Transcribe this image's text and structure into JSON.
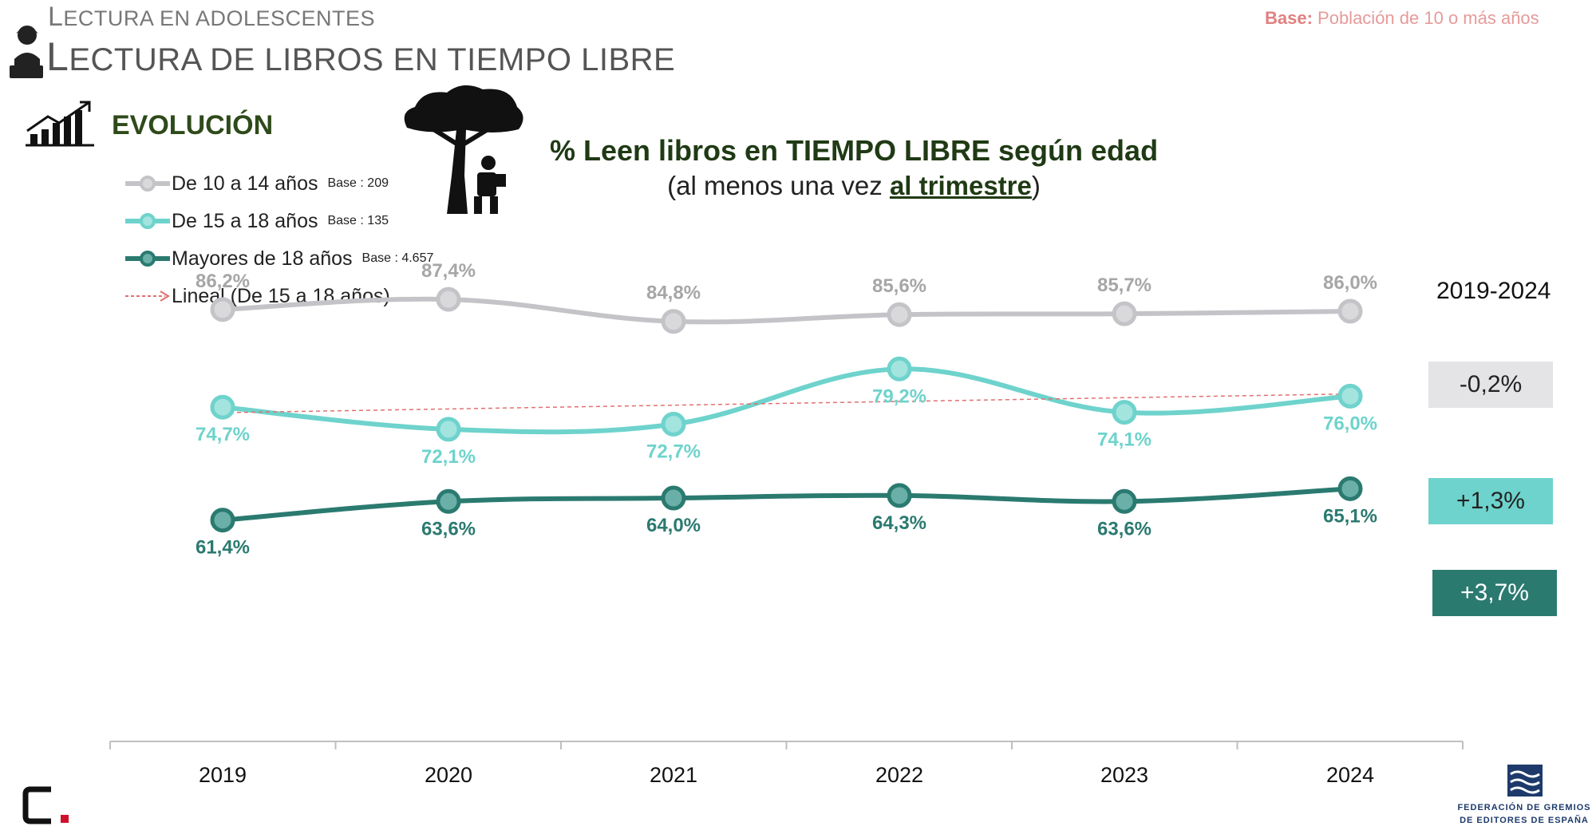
{
  "header": {
    "section_cap": "L",
    "section_rest": "ECTURA EN ADOLESCENTES",
    "title_cap1": "L",
    "title_rest1": "ECTURA DE LIBROS EN ",
    "title_cap2": "T",
    "title_rest2": "IEMPO LIBRE",
    "base_label": "Base:",
    "base_text": " Población de 10 o más años",
    "evolution_label": "EVOLUCIÓN"
  },
  "chart_data": {
    "type": "line",
    "title": "% Leen libros en TIEMPO LIBRE según edad",
    "subtitle_pre": "(al menos una vez ",
    "subtitle_em": "al trimestre",
    "subtitle_post": ")",
    "categories": [
      "2019",
      "2020",
      "2021",
      "2022",
      "2023",
      "2024"
    ],
    "series": [
      {
        "name": "De 10 a 14 años",
        "base": "Base : 209",
        "color": "#c4c4c8",
        "point_fill": "#d9d9dc",
        "values": [
          86.2,
          87.4,
          84.8,
          85.6,
          85.7,
          86.0
        ],
        "labels": [
          "86,2%",
          "87,4%",
          "84,8%",
          "85,6%",
          "85,7%",
          "86,0%"
        ],
        "label_position": "above",
        "label_color": "#a6a6a6"
      },
      {
        "name": "De 15 a 18 años",
        "base": "Base : 135",
        "color": "#6ed3cc",
        "point_fill": "#a3e4df",
        "values": [
          74.7,
          72.1,
          72.7,
          79.2,
          74.1,
          76.0
        ],
        "labels": [
          "74,7%",
          "72,1%",
          "72,7%",
          "79,2%",
          "74,1%",
          "76,0%"
        ],
        "label_position": "below",
        "label_color": "#6ed3cc"
      },
      {
        "name": "Mayores de 18 años",
        "base": "Base : 4.657",
        "color": "#2b7a70",
        "point_fill": "#6ab0a8",
        "values": [
          61.4,
          63.6,
          64.0,
          64.3,
          63.6,
          65.1
        ],
        "labels": [
          "61,4%",
          "63,6%",
          "64,0%",
          "64,3%",
          "63,6%",
          "65,1%"
        ],
        "label_position": "below",
        "label_color": "#2b7a70"
      }
    ],
    "trendline": {
      "name": "Lineal (De 15 a 18 años)",
      "color": "#e07070",
      "start": 74.05,
      "end": 76.25
    },
    "period": "2019-2024",
    "changes": [
      {
        "label": "-0,2%",
        "bg": "#e4e4e6",
        "fg": "#222222"
      },
      {
        "label": "+1,3%",
        "bg": "#6ed3cc",
        "fg": "#222222"
      },
      {
        "label": "+3,7%",
        "bg": "#2b7a70",
        "fg": "#ffffff"
      }
    ]
  },
  "logo": {
    "line1": "FEDERACIÓN DE GREMIOS",
    "line2": "DE EDITORES DE ESPAÑA"
  }
}
